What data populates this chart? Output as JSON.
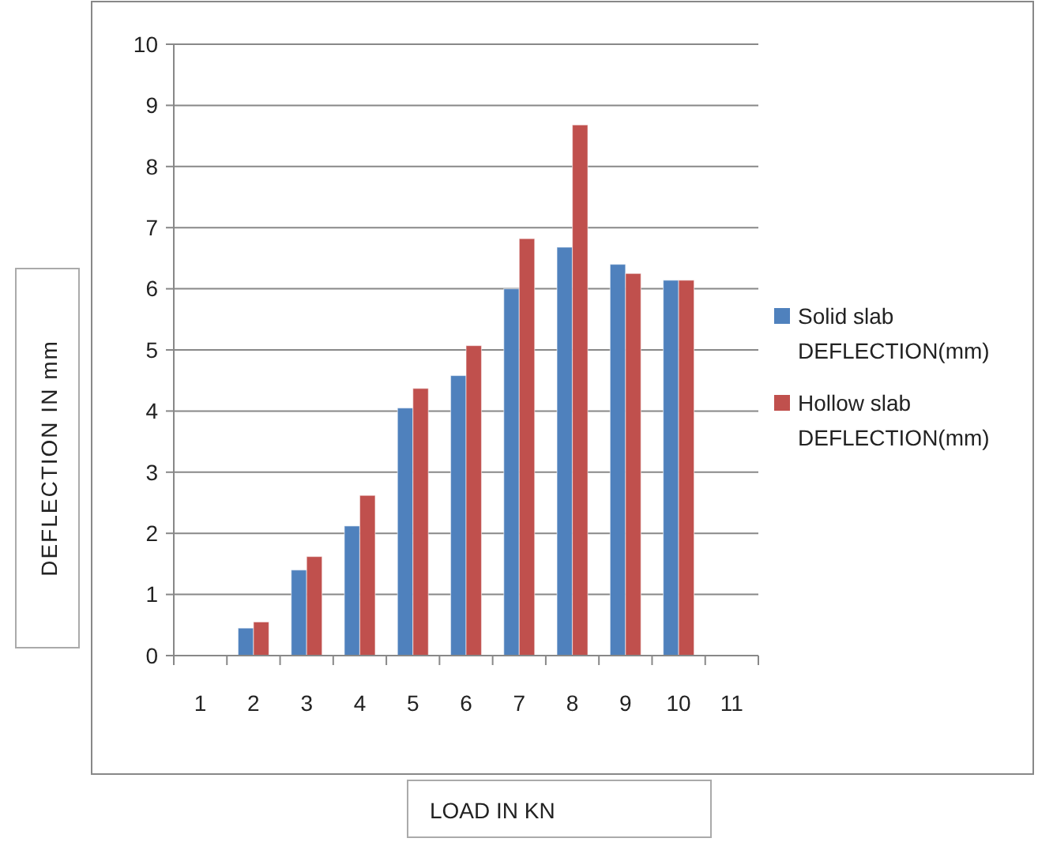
{
  "chart_data": {
    "type": "bar",
    "xlabel": "LOAD IN KN",
    "ylabel": "DEFLECTION  IN mm",
    "categories": [
      "1",
      "2",
      "3",
      "4",
      "5",
      "6",
      "7",
      "8",
      "9",
      "10",
      "11"
    ],
    "series": [
      {
        "name": "Solid slab DEFLECTION(mm)",
        "color": "#4f81bd",
        "values": [
          0,
          0.45,
          1.4,
          2.12,
          4.05,
          4.58,
          6.0,
          6.68,
          6.4,
          6.14,
          0
        ]
      },
      {
        "name": "Hollow slab DEFLECTION(mm)",
        "color": "#c0504d",
        "values": [
          0,
          0.55,
          1.62,
          2.62,
          4.37,
          5.07,
          6.82,
          8.68,
          6.25,
          6.14,
          0
        ]
      }
    ],
    "ylim": [
      0,
      10
    ],
    "yticks": [
      0,
      1,
      2,
      3,
      4,
      5,
      6,
      7,
      8,
      9,
      10
    ],
    "grid": "y",
    "legend": "right"
  }
}
